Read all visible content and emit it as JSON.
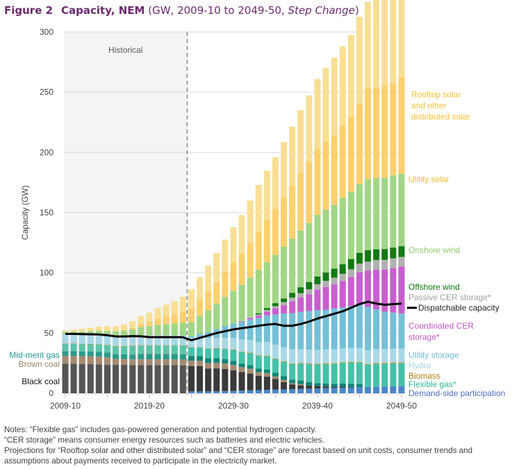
{
  "header": {
    "figure_label": "Figure 2",
    "title": "Capacity, NEM",
    "subtitle_prefix": "(GW, 2009-10 to 2049-50, ",
    "subtitle_scenario": "Step Change",
    "subtitle_suffix": ")"
  },
  "notes": [
    "Notes: “Flexible gas” includes gas-powered generation and potential hydrogen capacity.",
    "“CER storage” means consumer energy resources such as batteries and electric vehicles.",
    "Projections for “Rooftop solar and other distributed solar” and “CER storage” are forecast based on unit costs, consumer trends and",
    "assumptions about payments received to participate in the electricity market."
  ],
  "chart_data": {
    "type": "bar",
    "stacked": true,
    "title": "Capacity, NEM (GW, 2009-10 to 2049-50, Step Change)",
    "xlabel": "",
    "ylabel": "Capacity (GW)",
    "ylim": [
      0,
      300
    ],
    "yticks": [
      0,
      50,
      100,
      150,
      200,
      250,
      300
    ],
    "xtick_labels": [
      "2009-10",
      "2019-20",
      "2029-30",
      "2039-40",
      "2049-50"
    ],
    "grid": true,
    "annotation": "Historical",
    "historical_through": "2023-24",
    "categories": [
      "2009-10",
      "2010-11",
      "2011-12",
      "2012-13",
      "2013-14",
      "2014-15",
      "2015-16",
      "2016-17",
      "2017-18",
      "2018-19",
      "2019-20",
      "2020-21",
      "2021-22",
      "2022-23",
      "2023-24",
      "2024-25",
      "2025-26",
      "2026-27",
      "2027-28",
      "2028-29",
      "2029-30",
      "2030-31",
      "2031-32",
      "2032-33",
      "2033-34",
      "2034-35",
      "2035-36",
      "2036-37",
      "2037-38",
      "2038-39",
      "2039-40",
      "2040-41",
      "2041-42",
      "2042-43",
      "2043-44",
      "2044-45",
      "2045-46",
      "2046-47",
      "2047-48",
      "2048-49",
      "2049-50"
    ],
    "series": [
      {
        "name": "Demand-side participation",
        "color": "#4a86c8",
        "values": [
          0,
          0,
          0,
          0,
          0,
          0,
          0,
          0,
          0,
          0,
          0,
          0,
          0,
          0,
          0,
          1.5,
          1.5,
          1.6,
          1.7,
          1.8,
          2,
          2.2,
          2.4,
          2.6,
          2.8,
          3,
          3.2,
          3.4,
          3.6,
          3.8,
          4,
          4.2,
          4.4,
          4.6,
          4.8,
          5,
          5.2,
          5.4,
          5.6,
          5.8,
          6
        ]
      },
      {
        "name": "Black coal",
        "color": "#555555",
        "colorForecast": "#3a3a3a",
        "values": [
          24.5,
          24.5,
          24.3,
          24.2,
          24,
          23.6,
          23.6,
          23.6,
          23.4,
          23.4,
          23.4,
          23.4,
          23.4,
          23.4,
          23.2,
          21,
          21,
          19,
          19,
          18.5,
          17,
          15.5,
          14,
          12,
          11,
          9,
          6,
          4,
          3,
          2.5,
          2,
          1.5,
          1,
          1,
          0.6,
          0,
          0,
          0,
          0,
          0,
          0
        ]
      },
      {
        "name": "Brown coal",
        "color": "#a58a72",
        "values": [
          6.5,
          6.5,
          6.5,
          6.5,
          6.5,
          6.3,
          4.8,
          4.8,
          4.8,
          4.8,
          4.8,
          4.8,
          4.8,
          4.8,
          4.8,
          4.5,
          4.5,
          4.5,
          4.5,
          4.5,
          4.5,
          4,
          4,
          3,
          3,
          2,
          2,
          1,
          1,
          0,
          0,
          0,
          0,
          0,
          0,
          0,
          0,
          0,
          0,
          0,
          0
        ]
      },
      {
        "name": "Mid-merit gas",
        "color": "#2a9a88",
        "colorForecast": "#0d8574",
        "values": [
          4,
          4,
          4,
          4,
          4,
          4,
          4,
          4,
          4,
          4.5,
          4.5,
          4.5,
          4.5,
          4.5,
          4.5,
          4,
          4,
          4,
          4,
          3.5,
          3.5,
          3,
          3,
          3,
          3,
          3,
          3,
          3,
          3,
          3,
          2.5,
          2.5,
          2.5,
          2.5,
          2.5,
          2.5,
          0,
          0,
          0,
          0,
          0
        ]
      },
      {
        "name": "Flexible gas*",
        "color": "#5cc4ab",
        "colorForecast": "#43c2a8",
        "values": [
          6,
          6,
          6,
          6,
          6,
          6,
          6.5,
          6.5,
          7,
          7,
          7,
          7,
          7,
          7,
          7,
          7,
          7,
          8,
          8,
          8.5,
          9,
          9.5,
          10,
          10.5,
          11,
          11.5,
          12,
          13,
          14,
          15,
          15.5,
          16,
          16.5,
          17,
          17.5,
          18,
          18.5,
          19,
          19,
          19,
          19
        ]
      },
      {
        "name": "Biomass",
        "color": "#c8962e",
        "values": [
          0.3,
          0.3,
          0.3,
          0.3,
          0.3,
          0.3,
          0.3,
          0.3,
          0.3,
          0.3,
          0.3,
          0.3,
          0.3,
          0.3,
          0.3,
          0.3,
          0.3,
          0.3,
          0.3,
          0.3,
          0.4,
          0.4,
          0.4,
          0.4,
          0.4,
          0.4,
          0.5,
          0.5,
          0.5,
          0.5,
          0.5,
          0.6,
          0.6,
          0.6,
          0.6,
          0.6,
          0.6,
          0.7,
          0.7,
          0.7,
          0.7
        ]
      },
      {
        "name": "Hydro",
        "color": "#a8d8e6",
        "values": [
          8,
          8,
          8,
          8,
          8,
          8,
          8,
          8,
          8,
          8,
          8,
          8,
          8,
          8,
          8,
          8,
          8,
          8.5,
          8.5,
          9,
          9.5,
          10,
          10.5,
          11,
          11.5,
          11.5,
          11.5,
          11.5,
          11.5,
          11.5,
          11.5,
          11.5,
          11.5,
          11.5,
          11.5,
          11.5,
          11.5,
          11.5,
          11.5,
          11.5,
          11.5
        ]
      },
      {
        "name": "Utility storage",
        "color": "#74c0d6",
        "values": [
          0,
          0,
          0,
          0,
          0,
          0,
          0,
          0,
          0,
          0,
          0,
          0,
          0,
          0,
          0.3,
          1,
          3,
          5,
          7.5,
          10,
          12,
          14.5,
          17,
          20,
          22,
          25,
          28,
          30,
          31,
          32,
          33,
          33,
          34,
          34,
          35,
          36,
          36,
          33,
          31,
          30,
          29
        ]
      },
      {
        "name": "Coordinated CER storage*",
        "color": "#c95ecf",
        "values": [
          0,
          0,
          0,
          0,
          0,
          0,
          0,
          0,
          0,
          0,
          0,
          0,
          0,
          0,
          0,
          0,
          0,
          0,
          0,
          0,
          0,
          0.5,
          1,
          2,
          3,
          5,
          7,
          10,
          12,
          14,
          17,
          19,
          20,
          22,
          24,
          27,
          30,
          33,
          35,
          37,
          39
        ]
      },
      {
        "name": "Passive CER storage*",
        "color": "#b0b0b0",
        "values": [
          0,
          0,
          0,
          0,
          0,
          0,
          0,
          0,
          0,
          0,
          0,
          0,
          0,
          0,
          0,
          0,
          0,
          0,
          0,
          0,
          0,
          0.4,
          0.7,
          1,
          1.5,
          2,
          2.5,
          3,
          3.5,
          4,
          4.5,
          5,
          5.5,
          6,
          6.5,
          7,
          7.5,
          8,
          8,
          8,
          8
        ]
      },
      {
        "name": "Offshore wind",
        "color": "#117b11",
        "values": [
          0,
          0,
          0,
          0,
          0,
          0,
          0,
          0,
          0,
          0,
          0,
          0,
          0,
          0,
          0,
          0,
          0,
          0,
          0,
          0,
          0,
          0,
          0,
          1,
          1.5,
          2.5,
          3,
          4,
          5,
          6,
          6.5,
          7,
          7.5,
          8,
          8.5,
          9,
          9.5,
          9,
          9,
          9,
          9
        ]
      },
      {
        "name": "Onshore wind",
        "color": "#a1d685",
        "values": [
          1.7,
          2,
          2.2,
          2.6,
          3.2,
          3.6,
          4.3,
          4.8,
          5.6,
          6.8,
          7.6,
          8.7,
          9.2,
          10,
          10.6,
          12,
          15,
          18,
          21,
          24,
          27,
          30,
          33,
          36,
          38,
          40,
          43,
          45,
          47,
          49,
          51,
          52,
          53,
          55,
          56,
          57,
          59,
          59,
          59,
          60,
          60
        ]
      },
      {
        "name": "Utility solar",
        "color": "#fdd06d",
        "values": [
          0,
          0,
          0,
          0,
          0,
          0,
          0,
          0.2,
          1.2,
          2.7,
          3.8,
          5.5,
          6.6,
          7.3,
          8.8,
          11,
          14,
          16,
          18,
          21,
          24,
          26,
          29,
          32,
          35,
          38,
          41,
          44,
          48,
          51,
          55,
          57,
          58,
          60,
          62,
          67,
          76,
          75,
          77,
          76,
          80
        ]
      },
      {
        "name": "Rooftop solar and other distributed solar",
        "color": "#f8df95",
        "values": [
          1.3,
          1.7,
          2.3,
          2.8,
          3.3,
          3.8,
          4.3,
          4.9,
          5.6,
          6.5,
          7.5,
          8.6,
          9.8,
          11.2,
          12.5,
          16,
          18,
          21,
          24,
          26.5,
          29,
          32,
          35,
          38.5,
          41,
          43,
          46,
          49,
          52,
          55,
          58,
          61,
          64,
          66,
          68,
          72,
          71,
          74,
          76,
          82,
          86
        ]
      }
    ],
    "line_series": {
      "name": "Dispatchable capacity",
      "color": "#000000",
      "values": [
        49.3,
        49.3,
        49.1,
        49,
        48.8,
        48.2,
        47.2,
        47.2,
        47.5,
        47.3,
        46.6,
        46.6,
        46.6,
        46.6,
        46.5,
        44,
        46,
        48,
        50,
        51.5,
        53,
        54,
        55,
        56,
        57,
        57.5,
        56,
        56,
        57.5,
        59.5,
        62,
        64,
        66,
        68,
        71,
        74,
        76,
        74.5,
        73.5,
        74,
        74.5
      ]
    },
    "legend": {
      "placement": "right",
      "items": [
        {
          "label": "Rooftop solar and other distributed solar",
          "lines": [
            "Rooftop solar",
            "and other",
            "distributed solar"
          ],
          "color": "#f5c12f"
        },
        {
          "label": "Utility solar",
          "lines": [
            "Utility solar"
          ],
          "color": "#f7bb2a"
        },
        {
          "label": "Onshore wind",
          "lines": [
            "Onshore wind"
          ],
          "color": "#8fcf6e"
        },
        {
          "label": "Offshore wind",
          "lines": [
            "Offshore wind"
          ],
          "color": "#0b7a0b"
        },
        {
          "label": "Passive CER storage*",
          "lines": [
            "Passive CER storage*"
          ],
          "color": "#a0a0a0"
        },
        {
          "label": "Dispatchable capacity",
          "lines": [
            "Dispatchable capacity"
          ],
          "color": "#222222",
          "line": true
        },
        {
          "label": "Coordinated CER storage*",
          "lines": [
            "Coordinated CER",
            "storage*"
          ],
          "color": "#c553c9"
        },
        {
          "label": "Utility storage",
          "lines": [
            "Utility storage"
          ],
          "color": "#6cbcd2"
        },
        {
          "label": "Hydro",
          "lines": [
            "Hydro"
          ],
          "color": "#9fd6ea"
        },
        {
          "label": "Biomass",
          "lines": [
            "Biomass"
          ],
          "color": "#b07d12"
        },
        {
          "label": "Flexible gas*",
          "lines": [
            "Flexible gas*"
          ],
          "color": "#2fb79a"
        },
        {
          "label": "Demand-side participation",
          "lines": [
            "Demand-side participation"
          ],
          "color": "#4a6fc0"
        }
      ],
      "left_items": [
        {
          "label": "Mid-merit gas",
          "color": "#1f9a91"
        },
        {
          "label": "Brown coal",
          "color": "#9b8068"
        },
        {
          "label": "Black coal",
          "color": "#111111"
        }
      ]
    }
  }
}
